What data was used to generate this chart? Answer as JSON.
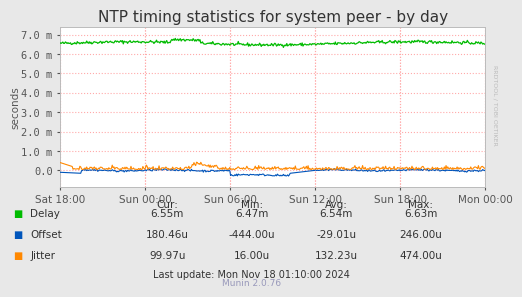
{
  "title": "NTP timing statistics for system peer - by day",
  "ylabel": "seconds",
  "background_color": "#E8E8E8",
  "plot_background": "#FFFFFF",
  "grid_color": "#FFAAAA",
  "title_fontsize": 11,
  "axis_fontsize": 7.5,
  "tick_fontsize": 7.5,
  "ylim": [
    -0.00085,
    0.0074
  ],
  "yticks": [
    0.0,
    0.001,
    0.002,
    0.003,
    0.004,
    0.005,
    0.006,
    0.007
  ],
  "ytick_labels": [
    "0.0",
    "1.0 m",
    "2.0 m",
    "3.0 m",
    "4.0 m",
    "5.0 m",
    "6.0 m",
    "7.0 m"
  ],
  "delay_color": "#00BB00",
  "offset_color": "#0055BB",
  "jitter_color": "#FF8800",
  "stats_header": [
    "Cur:",
    "Min:",
    "Avg:",
    "Max:"
  ],
  "stats_delay": [
    "6.55m",
    "6.47m",
    "6.54m",
    "6.63m"
  ],
  "stats_offset": [
    "180.46u",
    "-444.00u",
    "-29.01u",
    "246.00u"
  ],
  "stats_jitter": [
    "99.97u",
    "16.00u",
    "132.23u",
    "474.00u"
  ],
  "last_update": "Last update: Mon Nov 18 01:10:00 2024",
  "munin_version": "Munin 2.0.76",
  "rrdtool_label": "RRDTOOL / TOBI OETIKER",
  "xtick_labels": [
    "Sat 18:00",
    "Sun 00:00",
    "Sun 06:00",
    "Sun 12:00",
    "Sun 18:00",
    "Mon 00:00"
  ],
  "n_points": 500
}
